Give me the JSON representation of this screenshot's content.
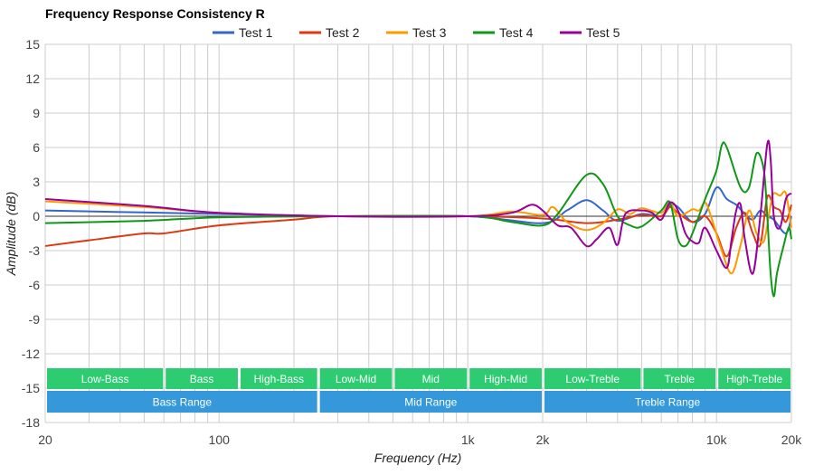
{
  "chart_data": {
    "type": "line",
    "title": "Frequency Response Consistency R",
    "xlabel": "Frequency (Hz)",
    "ylabel": "Amplitude (dB)",
    "xscale": "log",
    "xlim": [
      20,
      20000
    ],
    "ylim": [
      -18,
      15
    ],
    "grid": true,
    "legend_position": "top",
    "x_ticks": [
      {
        "v": 20,
        "label": "20"
      },
      {
        "v": 100,
        "label": "100"
      },
      {
        "v": 1000,
        "label": "1k"
      },
      {
        "v": 2000,
        "label": "2k"
      },
      {
        "v": 10000,
        "label": "10k"
      },
      {
        "v": 20000,
        "label": "20k"
      }
    ],
    "y_ticks": [
      15,
      12,
      9,
      6,
      3,
      0,
      -3,
      -6,
      -9,
      -12,
      -15,
      -18
    ],
    "series": [
      {
        "name": "Test 1",
        "color": "#3366cc",
        "points": [
          [
            20,
            0.5
          ],
          [
            100,
            0.2
          ],
          [
            300,
            0
          ],
          [
            1000,
            0
          ],
          [
            2000,
            -0.6
          ],
          [
            2500,
            0.5
          ],
          [
            3000,
            1.4
          ],
          [
            3500,
            0.5
          ],
          [
            4000,
            -0.4
          ],
          [
            5000,
            0.2
          ],
          [
            6000,
            0
          ],
          [
            6500,
            1
          ],
          [
            7000,
            0.8
          ],
          [
            8000,
            -0.5
          ],
          [
            9000,
            0.2
          ],
          [
            10000,
            2.5
          ],
          [
            11000,
            1.5
          ],
          [
            12000,
            1
          ],
          [
            13000,
            0.2
          ],
          [
            14000,
            -0.3
          ],
          [
            15000,
            0.5
          ],
          [
            16000,
            0
          ],
          [
            17000,
            -0.3
          ],
          [
            19000,
            -1.5
          ],
          [
            20000,
            0
          ]
        ]
      },
      {
        "name": "Test 2",
        "color": "#dc3912",
        "points": [
          [
            20,
            -2.6
          ],
          [
            30,
            -2.1
          ],
          [
            50,
            -1.5
          ],
          [
            60,
            -1.5
          ],
          [
            100,
            -0.8
          ],
          [
            200,
            -0.3
          ],
          [
            300,
            0
          ],
          [
            1000,
            0
          ],
          [
            2000,
            -0.2
          ],
          [
            3000,
            -0.6
          ],
          [
            4000,
            -0.3
          ],
          [
            5000,
            0.1
          ],
          [
            6000,
            0
          ],
          [
            6500,
            0.8
          ],
          [
            7000,
            0.3
          ],
          [
            8000,
            -0.5
          ],
          [
            9000,
            0
          ],
          [
            10000,
            -1.5
          ],
          [
            11000,
            -3.5
          ],
          [
            12000,
            -1
          ],
          [
            13000,
            0.3
          ],
          [
            14000,
            -1.5
          ],
          [
            15000,
            -2.5
          ],
          [
            16000,
            1.7
          ],
          [
            17000,
            0.8
          ],
          [
            18000,
            0.5
          ],
          [
            19000,
            -0.5
          ],
          [
            20000,
            1
          ]
        ]
      },
      {
        "name": "Test 3",
        "color": "#ff9900",
        "points": [
          [
            20,
            1.3
          ],
          [
            50,
            0.8
          ],
          [
            100,
            0.3
          ],
          [
            300,
            0
          ],
          [
            1000,
            0
          ],
          [
            1500,
            0.4
          ],
          [
            2000,
            0.1
          ],
          [
            2200,
            0.8
          ],
          [
            2500,
            -0.5
          ],
          [
            3000,
            -1.2
          ],
          [
            3500,
            -0.6
          ],
          [
            4000,
            0.6
          ],
          [
            4500,
            0.2
          ],
          [
            5000,
            0.7
          ],
          [
            6000,
            0.3
          ],
          [
            6500,
            1.2
          ],
          [
            7000,
            0
          ],
          [
            8000,
            0.6
          ],
          [
            8500,
            0.5
          ],
          [
            9000,
            1.2
          ],
          [
            9500,
            0
          ],
          [
            10500,
            -3
          ],
          [
            11500,
            -5
          ],
          [
            12500,
            -2.5
          ],
          [
            13500,
            0.5
          ],
          [
            14500,
            -1.5
          ],
          [
            15500,
            -2.2
          ],
          [
            16500,
            1
          ],
          [
            17000,
            2
          ],
          [
            18000,
            1.8
          ],
          [
            19000,
            2
          ],
          [
            20000,
            -1
          ]
        ]
      },
      {
        "name": "Test 4",
        "color": "#109618",
        "points": [
          [
            20,
            -0.6
          ],
          [
            50,
            -0.4
          ],
          [
            100,
            -0.1
          ],
          [
            300,
            0
          ],
          [
            1000,
            0
          ],
          [
            1500,
            -0.5
          ],
          [
            2000,
            -0.8
          ],
          [
            2300,
            0.2
          ],
          [
            3000,
            3.6
          ],
          [
            3500,
            2.8
          ],
          [
            4000,
            0
          ],
          [
            4500,
            -0.8
          ],
          [
            5000,
            -0.9
          ],
          [
            6000,
            0.5
          ],
          [
            6500,
            1.2
          ],
          [
            7000,
            -2
          ],
          [
            7500,
            -2.6
          ],
          [
            8000,
            -1.5
          ],
          [
            9000,
            1.5
          ],
          [
            10000,
            4
          ],
          [
            10500,
            6.2
          ],
          [
            11000,
            6
          ],
          [
            12500,
            2.5
          ],
          [
            13500,
            2.5
          ],
          [
            14500,
            5.5
          ],
          [
            15500,
            4
          ],
          [
            16000,
            0
          ],
          [
            16500,
            -5
          ],
          [
            17000,
            -7
          ],
          [
            17500,
            -5
          ],
          [
            18500,
            -2.8
          ],
          [
            19500,
            -1
          ],
          [
            20000,
            -2
          ]
        ]
      },
      {
        "name": "Test 5",
        "color": "#990099",
        "points": [
          [
            20,
            1.5
          ],
          [
            50,
            0.9
          ],
          [
            100,
            0.3
          ],
          [
            300,
            0
          ],
          [
            1000,
            0
          ],
          [
            1500,
            0.3
          ],
          [
            1800,
            1
          ],
          [
            2000,
            0.5
          ],
          [
            2300,
            -0.8
          ],
          [
            2600,
            -1
          ],
          [
            3000,
            -2.6
          ],
          [
            3300,
            -2
          ],
          [
            3700,
            -1
          ],
          [
            4000,
            -2.5
          ],
          [
            4300,
            0.2
          ],
          [
            5000,
            0.5
          ],
          [
            5500,
            0.3
          ],
          [
            6000,
            -0.3
          ],
          [
            6500,
            1.2
          ],
          [
            7000,
            0.5
          ],
          [
            7500,
            -1.5
          ],
          [
            8000,
            -2.2
          ],
          [
            8500,
            -2.3
          ],
          [
            9000,
            -1
          ],
          [
            10000,
            -3
          ],
          [
            11000,
            -4.5
          ],
          [
            11500,
            -2
          ],
          [
            12000,
            0.5
          ],
          [
            12500,
            1
          ],
          [
            13000,
            -2
          ],
          [
            14000,
            -5
          ],
          [
            15000,
            0
          ],
          [
            16000,
            6.3
          ],
          [
            16500,
            5
          ],
          [
            17000,
            0
          ],
          [
            18000,
            -1
          ],
          [
            19000,
            1.5
          ],
          [
            20000,
            2
          ]
        ]
      }
    ],
    "bands": [
      {
        "label": "Low-Bass",
        "from": 20,
        "to": 60
      },
      {
        "label": "Bass",
        "from": 60,
        "to": 120
      },
      {
        "label": "High-Bass",
        "from": 120,
        "to": 250
      },
      {
        "label": "Low-Mid",
        "from": 250,
        "to": 500
      },
      {
        "label": "Mid",
        "from": 500,
        "to": 1000
      },
      {
        "label": "High-Mid",
        "from": 1000,
        "to": 2000
      },
      {
        "label": "Low-Treble",
        "from": 2000,
        "to": 5000
      },
      {
        "label": "Treble",
        "from": 5000,
        "to": 10000
      },
      {
        "label": "High-Treble",
        "from": 10000,
        "to": 20000
      }
    ],
    "ranges": [
      {
        "label": "Bass Range",
        "from": 20,
        "to": 250
      },
      {
        "label": "Mid Range",
        "from": 250,
        "to": 2000
      },
      {
        "label": "Treble Range",
        "from": 2000,
        "to": 20000
      }
    ],
    "band_color": "#2ecc71",
    "range_color": "#3498db"
  }
}
